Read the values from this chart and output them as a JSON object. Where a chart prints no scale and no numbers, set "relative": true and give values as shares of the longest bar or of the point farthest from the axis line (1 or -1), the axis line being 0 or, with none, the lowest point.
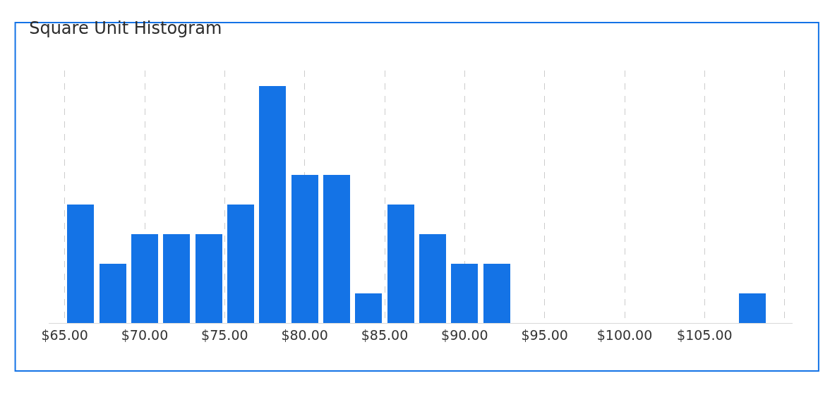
{
  "chart_data": {
    "type": "bar",
    "title": "Square Unit Histogram",
    "relative": true,
    "x": [
      66,
      68,
      70,
      72,
      74,
      76,
      78,
      80,
      82,
      84,
      86,
      88,
      90,
      92,
      108
    ],
    "values": [
      0.5,
      0.25,
      0.375,
      0.375,
      0.375,
      0.5,
      1,
      0.625,
      0.625,
      0.125,
      0.5,
      0.375,
      0.25,
      0.25,
      0.125
    ],
    "color": "#1473e6",
    "xlim": [
      64,
      110.5
    ],
    "xticks": [
      {
        "value": 65,
        "label": "$65.00"
      },
      {
        "value": 70,
        "label": "$70.00"
      },
      {
        "value": 75,
        "label": "$75.00"
      },
      {
        "value": 80,
        "label": "$80.00"
      },
      {
        "value": 85,
        "label": "$85.00"
      },
      {
        "value": 90,
        "label": "$90.00"
      },
      {
        "value": 95,
        "label": "$95.00"
      },
      {
        "value": 100,
        "label": "$100.00"
      },
      {
        "value": 105,
        "label": "$105.00"
      },
      {
        "value": 110,
        "label": null
      }
    ],
    "grid": "x"
  }
}
